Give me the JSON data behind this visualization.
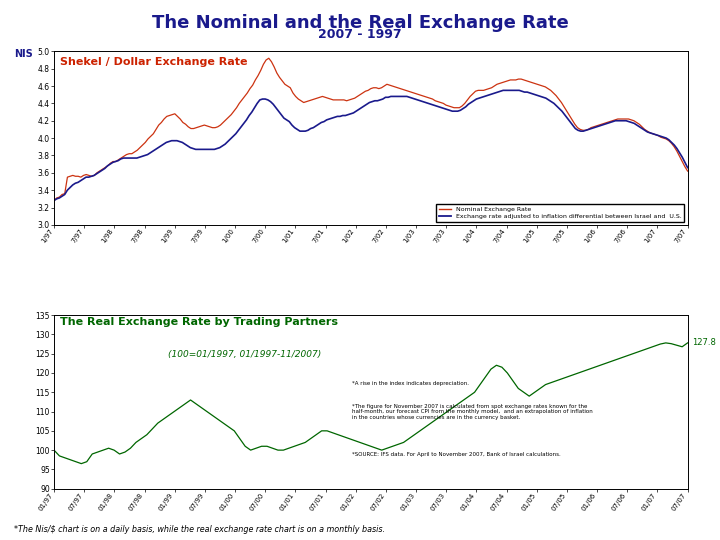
{
  "title": "The Nominal and the Real Exchange Rate",
  "subtitle": "2007 - 1997",
  "nis_label": "NIS",
  "title_color": "#1a1a8c",
  "subtitle_color": "#1a1a8c",
  "bg_color": "#ffffff",
  "chart1_title": "Shekel / Dollar Exchange Rate",
  "chart1_title_color": "#cc2200",
  "chart1_ylim": [
    3.0,
    5.0
  ],
  "chart1_yticks": [
    3.0,
    3.2,
    3.4,
    3.6,
    3.8,
    4.0,
    4.2,
    4.4,
    4.6,
    4.8,
    5.0
  ],
  "chart1_legend1": "Nominal Exchange Rate",
  "chart1_legend2": "Exchange rate adjusted to inflation differential between Israel and  U.S.",
  "nominal_color": "#cc3311",
  "real_color": "#1a1a8c",
  "chart2_title": "The Real Exchange Rate by Trading Partners",
  "chart2_title_color": "#006600",
  "chart2_subtitle": "(100=01/1997, 01/1997-11/2007)",
  "chart2_subtitle_color": "#006600",
  "chart2_ylim": [
    90,
    135
  ],
  "chart2_yticks": [
    90,
    95,
    100,
    105,
    110,
    115,
    120,
    125,
    130,
    135
  ],
  "chart2_end_label": "127.8",
  "chart2_color": "#006600",
  "note1": "*A rise in the index indicates depreciation.",
  "note2": "*The figure for November 2007 is calculated from spot exchange rates known for the\nhalf-month, our forecast CPI from the monthly model,  and an extrapolation of inflation\nin the countries whose currencies are in the currency basket.",
  "note3": "*SOURCE: IFS data. For April to November 2007, Bank of Israel calculations.",
  "footer": "*The Nis/$ chart is on a daily basis, while the real exchange rate chart is on a monthly basis.",
  "xtick_labels_top": [
    "1/97",
    "7/97",
    "1/98",
    "7/98",
    "1/99",
    "7/99",
    "1/00",
    "7/00",
    "1/01",
    "7/01",
    "1/02",
    "7/02",
    "1/03",
    "7/03",
    "1/04",
    "7/04",
    "1/05",
    "7/05",
    "1/06",
    "7/06",
    "1/07",
    "7/07"
  ],
  "xtick_labels_bot": [
    "01/97",
    "07/97",
    "01/98",
    "07/98",
    "01/99",
    "07/99",
    "01/00",
    "07/00",
    "01/01",
    "07/01",
    "01/02",
    "07/02",
    "01/03",
    "07/03",
    "01/04",
    "07/04",
    "01/05",
    "07/05",
    "01/06",
    "07/06",
    "01/07",
    "07/07"
  ],
  "nominal_data": [
    3.28,
    3.31,
    3.32,
    3.35,
    3.36,
    3.55,
    3.56,
    3.57,
    3.56,
    3.56,
    3.55,
    3.57,
    3.58,
    3.57,
    3.56,
    3.57,
    3.6,
    3.62,
    3.64,
    3.66,
    3.68,
    3.71,
    3.73,
    3.73,
    3.75,
    3.77,
    3.79,
    3.81,
    3.82,
    3.82,
    3.84,
    3.86,
    3.89,
    3.92,
    3.95,
    3.99,
    4.02,
    4.05,
    4.1,
    4.15,
    4.18,
    4.22,
    4.25,
    4.26,
    4.27,
    4.28,
    4.25,
    4.22,
    4.18,
    4.16,
    4.13,
    4.11,
    4.11,
    4.12,
    4.13,
    4.14,
    4.15,
    4.14,
    4.13,
    4.12,
    4.12,
    4.13,
    4.15,
    4.18,
    4.21,
    4.24,
    4.27,
    4.31,
    4.35,
    4.4,
    4.44,
    4.48,
    4.52,
    4.57,
    4.61,
    4.67,
    4.72,
    4.78,
    4.85,
    4.9,
    4.92,
    4.88,
    4.82,
    4.75,
    4.7,
    4.66,
    4.62,
    4.6,
    4.58,
    4.52,
    4.48,
    4.45,
    4.43,
    4.41,
    4.42,
    4.43,
    4.44,
    4.45,
    4.46,
    4.47,
    4.48,
    4.47,
    4.46,
    4.45,
    4.44,
    4.44,
    4.44,
    4.44,
    4.44,
    4.43,
    4.44,
    4.45,
    4.46,
    4.48,
    4.5,
    4.52,
    4.54,
    4.55,
    4.57,
    4.58,
    4.58,
    4.57,
    4.58,
    4.6,
    4.62,
    4.61,
    4.6,
    4.59,
    4.58,
    4.57,
    4.56,
    4.55,
    4.54,
    4.53,
    4.52,
    4.51,
    4.5,
    4.49,
    4.48,
    4.47,
    4.46,
    4.45,
    4.43,
    4.42,
    4.41,
    4.4,
    4.38,
    4.37,
    4.36,
    4.35,
    4.35,
    4.35,
    4.37,
    4.4,
    4.44,
    4.48,
    4.51,
    4.54,
    4.55,
    4.55,
    4.55,
    4.56,
    4.57,
    4.58,
    4.6,
    4.62,
    4.63,
    4.64,
    4.65,
    4.66,
    4.67,
    4.67,
    4.67,
    4.68,
    4.68,
    4.67,
    4.66,
    4.65,
    4.64,
    4.63,
    4.62,
    4.61,
    4.6,
    4.59,
    4.57,
    4.55,
    4.52,
    4.49,
    4.45,
    4.41,
    4.36,
    4.31,
    4.26,
    4.21,
    4.16,
    4.12,
    4.1,
    4.09,
    4.09,
    4.1,
    4.12,
    4.13,
    4.14,
    4.15,
    4.16,
    4.17,
    4.18,
    4.19,
    4.2,
    4.21,
    4.22,
    4.22,
    4.22,
    4.22,
    4.22,
    4.21,
    4.2,
    4.18,
    4.16,
    4.13,
    4.1,
    4.08,
    4.06,
    4.05,
    4.04,
    4.03,
    4.01,
    4.0,
    3.99,
    3.97,
    3.94,
    3.9,
    3.85,
    3.79,
    3.73,
    3.67,
    3.62
  ],
  "real_adjusted_data": [
    3.28,
    3.3,
    3.31,
    3.33,
    3.35,
    3.4,
    3.43,
    3.46,
    3.48,
    3.49,
    3.51,
    3.53,
    3.55,
    3.55,
    3.56,
    3.57,
    3.59,
    3.61,
    3.63,
    3.65,
    3.68,
    3.7,
    3.72,
    3.73,
    3.74,
    3.76,
    3.77,
    3.77,
    3.77,
    3.77,
    3.77,
    3.77,
    3.78,
    3.79,
    3.8,
    3.81,
    3.83,
    3.85,
    3.87,
    3.89,
    3.91,
    3.93,
    3.95,
    3.96,
    3.97,
    3.97,
    3.97,
    3.96,
    3.95,
    3.93,
    3.91,
    3.89,
    3.88,
    3.87,
    3.87,
    3.87,
    3.87,
    3.87,
    3.87,
    3.87,
    3.87,
    3.88,
    3.89,
    3.91,
    3.93,
    3.96,
    3.99,
    4.02,
    4.05,
    4.09,
    4.13,
    4.17,
    4.21,
    4.26,
    4.3,
    4.35,
    4.4,
    4.44,
    4.45,
    4.45,
    4.44,
    4.42,
    4.39,
    4.35,
    4.31,
    4.27,
    4.23,
    4.21,
    4.19,
    4.15,
    4.12,
    4.1,
    4.08,
    4.08,
    4.08,
    4.09,
    4.11,
    4.12,
    4.14,
    4.16,
    4.18,
    4.19,
    4.21,
    4.22,
    4.23,
    4.24,
    4.25,
    4.25,
    4.26,
    4.26,
    4.27,
    4.28,
    4.29,
    4.31,
    4.33,
    4.35,
    4.37,
    4.39,
    4.41,
    4.42,
    4.43,
    4.43,
    4.44,
    4.45,
    4.47,
    4.47,
    4.48,
    4.48,
    4.48,
    4.48,
    4.48,
    4.48,
    4.48,
    4.47,
    4.46,
    4.45,
    4.44,
    4.43,
    4.42,
    4.41,
    4.4,
    4.39,
    4.38,
    4.37,
    4.36,
    4.35,
    4.34,
    4.33,
    4.32,
    4.31,
    4.31,
    4.31,
    4.32,
    4.34,
    4.36,
    4.39,
    4.41,
    4.43,
    4.45,
    4.46,
    4.47,
    4.48,
    4.49,
    4.5,
    4.51,
    4.52,
    4.53,
    4.54,
    4.55,
    4.55,
    4.55,
    4.55,
    4.55,
    4.55,
    4.55,
    4.54,
    4.53,
    4.53,
    4.52,
    4.51,
    4.5,
    4.49,
    4.48,
    4.47,
    4.46,
    4.44,
    4.42,
    4.4,
    4.37,
    4.34,
    4.31,
    4.27,
    4.23,
    4.19,
    4.15,
    4.11,
    4.09,
    4.08,
    4.08,
    4.09,
    4.1,
    4.11,
    4.12,
    4.13,
    4.14,
    4.15,
    4.16,
    4.17,
    4.18,
    4.19,
    4.2,
    4.2,
    4.2,
    4.2,
    4.2,
    4.19,
    4.18,
    4.17,
    4.15,
    4.13,
    4.11,
    4.09,
    4.07,
    4.06,
    4.05,
    4.04,
    4.03,
    4.02,
    4.01,
    4.0,
    3.98,
    3.95,
    3.92,
    3.88,
    3.83,
    3.78,
    3.72,
    3.66
  ],
  "real_monthly": [
    100,
    98.5,
    98,
    97.5,
    97,
    96.5,
    97,
    99,
    99.5,
    100,
    100.5,
    100,
    99,
    99.5,
    100.5,
    102,
    103,
    104,
    105.5,
    107,
    108,
    109,
    110,
    111,
    112,
    113,
    112,
    111,
    110,
    109,
    108,
    107,
    106,
    105,
    103,
    101,
    100,
    100.5,
    101,
    101,
    100.5,
    100,
    100,
    100.5,
    101,
    101.5,
    102,
    103,
    104,
    105,
    105,
    104.5,
    104,
    103.5,
    103,
    102.5,
    102,
    101.5,
    101,
    100.5,
    100,
    100.5,
    101,
    101.5,
    102,
    103,
    104,
    105,
    106,
    107,
    108,
    109,
    110,
    111,
    112,
    113,
    114,
    115,
    117,
    119,
    121,
    122,
    121.5,
    120,
    118,
    116,
    115,
    114,
    115,
    116,
    117,
    117.5,
    118,
    118.5,
    119,
    119.5,
    120,
    120.5,
    121,
    121.5,
    122,
    122.5,
    123,
    123.5,
    124,
    124.5,
    125,
    125.5,
    126,
    126.5,
    127,
    127.5,
    127.8,
    127.6,
    127.2,
    126.8,
    127.8
  ]
}
